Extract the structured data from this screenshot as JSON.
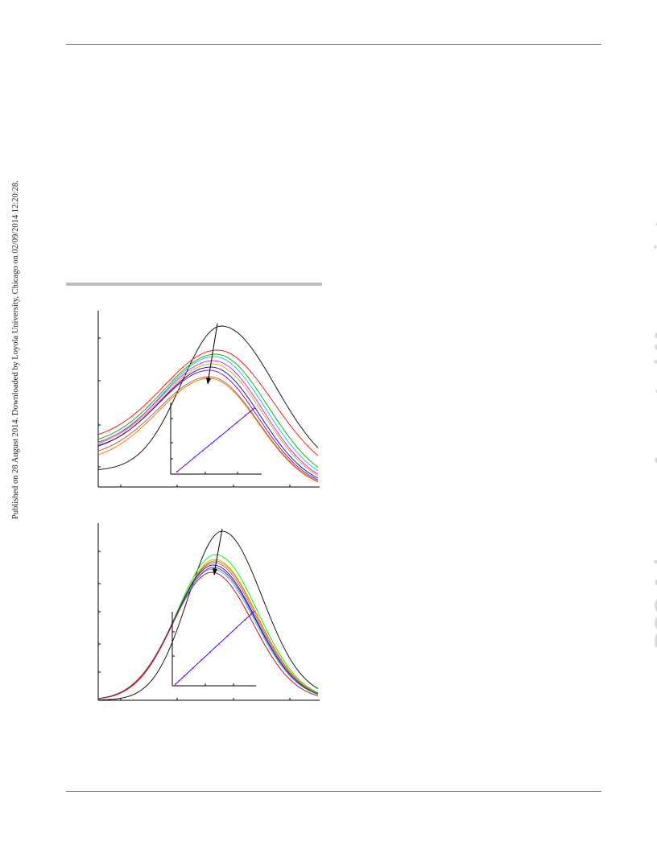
{
  "header": {
    "stamp": "Published on 28 August 2014. Downloaded by Loyola University, Chicago on 02/09/2014 12:20:28."
  },
  "watermark": {
    "text": "RSC Advances Accepted Manuscript"
  },
  "figures": [
    {
      "curve_colors": [
        "#000000",
        "#ff0000",
        "#00aa00",
        "#00cccc",
        "#ff00ff",
        "#bbbb00",
        "#0000cc",
        "#8800aa",
        "#996633",
        "#ff6600"
      ],
      "inset_marker_color": "#ff00ff",
      "inset_line_color": "#0000ff"
    },
    {
      "curve_colors": [
        "#000000",
        "#00ee00",
        "#bbbb00",
        "#ff6600",
        "#996633",
        "#0000cc",
        "#8800aa",
        "#00cccc",
        "#cc0000"
      ],
      "inset_marker_color": "#ff00ff",
      "inset_line_color": "#0000ff"
    }
  ]
}
